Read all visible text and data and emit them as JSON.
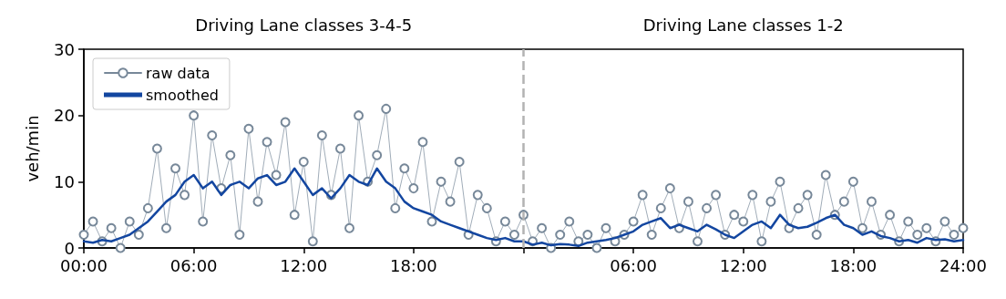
{
  "chart_data": {
    "type": "line",
    "annotations": [
      "Driving Lane classes 3-4-5",
      "Driving Lane classes 1-2"
    ],
    "ylabel": "veh/min",
    "xlim": [
      "2000-01-01T00:00",
      "2000-01-03T00:00"
    ],
    "ylim": [
      0,
      30
    ],
    "xticks": [
      {
        "value": "2000-01-01T00:00",
        "label": "00:00"
      },
      {
        "value": "2000-01-01T06:00",
        "label": "06:00"
      },
      {
        "value": "2000-01-01T12:00",
        "label": "12:00"
      },
      {
        "value": "2000-01-01T18:00",
        "label": "18:00"
      },
      {
        "value": "2000-01-02T00:00",
        "label": null
      },
      {
        "value": "2000-01-02T06:00",
        "label": "06:00"
      },
      {
        "value": "2000-01-02T12:00",
        "label": "12:00"
      },
      {
        "value": "2000-01-02T18:00",
        "label": "18:00"
      },
      {
        "value": "2000-01-03T00:00",
        "label": "24:00"
      }
    ],
    "yticks": [
      0,
      10,
      20,
      30
    ],
    "grid": false,
    "legend": "top left",
    "ref_lines": [
      {
        "axis": "x",
        "value": "2000-01-02T00:00",
        "color": "#b3b3b3",
        "line_style": "dashed"
      }
    ],
    "x": [
      "2000-01-01T00:00",
      "2000-01-01T00:30",
      "2000-01-01T01:00",
      "2000-01-01T01:30",
      "2000-01-01T02:00",
      "2000-01-01T02:30",
      "2000-01-01T03:00",
      "2000-01-01T03:30",
      "2000-01-01T04:00",
      "2000-01-01T04:30",
      "2000-01-01T05:00",
      "2000-01-01T05:30",
      "2000-01-01T06:00",
      "2000-01-01T06:30",
      "2000-01-01T07:00",
      "2000-01-01T07:30",
      "2000-01-01T08:00",
      "2000-01-01T08:30",
      "2000-01-01T09:00",
      "2000-01-01T09:30",
      "2000-01-01T10:00",
      "2000-01-01T10:30",
      "2000-01-01T11:00",
      "2000-01-01T11:30",
      "2000-01-01T12:00",
      "2000-01-01T12:30",
      "2000-01-01T13:00",
      "2000-01-01T13:30",
      "2000-01-01T14:00",
      "2000-01-01T14:30",
      "2000-01-01T15:00",
      "2000-01-01T15:30",
      "2000-01-01T16:00",
      "2000-01-01T16:30",
      "2000-01-01T17:00",
      "2000-01-01T17:30",
      "2000-01-01T18:00",
      "2000-01-01T18:30",
      "2000-01-01T19:00",
      "2000-01-01T19:30",
      "2000-01-01T20:00",
      "2000-01-01T20:30",
      "2000-01-01T21:00",
      "2000-01-01T21:30",
      "2000-01-01T22:00",
      "2000-01-01T22:30",
      "2000-01-01T23:00",
      "2000-01-01T23:30",
      "2000-01-02T00:00",
      "2000-01-02T00:30",
      "2000-01-02T01:00",
      "2000-01-02T01:30",
      "2000-01-02T02:00",
      "2000-01-02T02:30",
      "2000-01-02T03:00",
      "2000-01-02T03:30",
      "2000-01-02T04:00",
      "2000-01-02T04:30",
      "2000-01-02T05:00",
      "2000-01-02T05:30",
      "2000-01-02T06:00",
      "2000-01-02T06:30",
      "2000-01-02T07:00",
      "2000-01-02T07:30",
      "2000-01-02T08:00",
      "2000-01-02T08:30",
      "2000-01-02T09:00",
      "2000-01-02T09:30",
      "2000-01-02T10:00",
      "2000-01-02T10:30",
      "2000-01-02T11:00",
      "2000-01-02T11:30",
      "2000-01-02T12:00",
      "2000-01-02T12:30",
      "2000-01-02T13:00",
      "2000-01-02T13:30",
      "2000-01-02T14:00",
      "2000-01-02T14:30",
      "2000-01-02T15:00",
      "2000-01-02T15:30",
      "2000-01-02T16:00",
      "2000-01-02T16:30",
      "2000-01-02T17:00",
      "2000-01-02T17:30",
      "2000-01-02T18:00",
      "2000-01-02T18:30",
      "2000-01-02T19:00",
      "2000-01-02T19:30",
      "2000-01-02T20:00",
      "2000-01-02T20:30",
      "2000-01-02T21:00",
      "2000-01-02T21:30",
      "2000-01-02T22:00",
      "2000-01-02T22:30",
      "2000-01-02T23:00",
      "2000-01-02T23:30",
      "2000-01-03T00:00"
    ],
    "series": [
      {
        "name": "raw data",
        "color": "#778899",
        "marker": "circle",
        "values": [
          2,
          4,
          1,
          3,
          0,
          4,
          2,
          6,
          15,
          3,
          12,
          8,
          20,
          4,
          17,
          9,
          14,
          2,
          18,
          7,
          16,
          11,
          19,
          5,
          13,
          1,
          17,
          8,
          15,
          3,
          20,
          10,
          14,
          21,
          6,
          12,
          9,
          16,
          4,
          10,
          7,
          13,
          2,
          8,
          6,
          1,
          4,
          2,
          5,
          1,
          3,
          0,
          2,
          4,
          1,
          2,
          0,
          3,
          1,
          2,
          4,
          8,
          2,
          6,
          9,
          3,
          7,
          1,
          6,
          8,
          2,
          5,
          4,
          8,
          1,
          7,
          10,
          3,
          6,
          8,
          2,
          11,
          5,
          7,
          10,
          3,
          7,
          2,
          5,
          1,
          4,
          2,
          3,
          1,
          4,
          2,
          3
        ]
      },
      {
        "name": "smoothed",
        "color": "#1346a0",
        "marker": "none",
        "values": [
          1,
          0.8,
          1.2,
          1,
          1.5,
          2,
          3,
          4,
          5.5,
          7,
          8,
          10,
          11,
          9,
          10,
          8,
          9.5,
          10,
          9,
          10.5,
          11,
          9.5,
          10,
          12,
          10,
          8,
          9,
          7.5,
          9,
          11,
          10,
          9.5,
          12,
          10,
          9,
          7,
          6,
          5.5,
          5,
          4,
          3.5,
          3,
          2.5,
          2,
          1.5,
          1.2,
          1.5,
          1,
          1,
          0.5,
          0.8,
          0.4,
          0.6,
          0.5,
          0.3,
          0.8,
          1,
          1.2,
          1.5,
          2,
          2.5,
          3.5,
          4,
          4.5,
          3,
          3.5,
          3,
          2.5,
          3.5,
          2.8,
          2,
          1.5,
          2.5,
          3.5,
          4,
          3,
          5,
          3.5,
          3,
          3.2,
          3.8,
          4.5,
          5,
          3.5,
          3,
          2,
          2.5,
          1.8,
          1.5,
          1,
          1.2,
          0.8,
          1.5,
          1.2,
          1.3,
          1,
          1.2
        ]
      }
    ]
  }
}
